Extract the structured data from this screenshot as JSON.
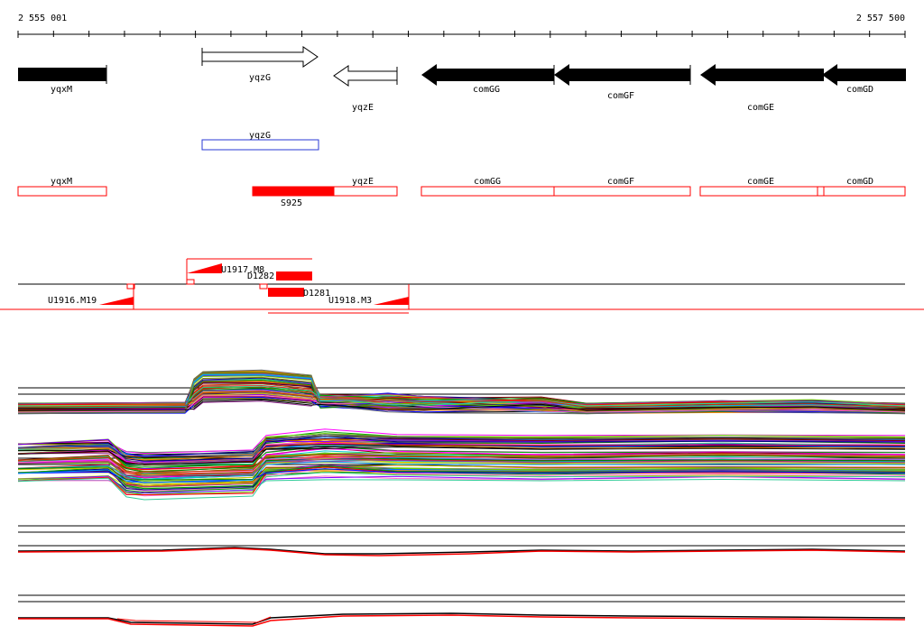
{
  "ruler": {
    "start_label": "2 555 001",
    "end_label": "2 557 500"
  },
  "genes": [
    {
      "name": "yqxM",
      "dir": "+",
      "fill": "black"
    },
    {
      "name": "yqzG",
      "dir": "+",
      "fill": "white"
    },
    {
      "name": "yqzE",
      "dir": "-",
      "fill": "white"
    },
    {
      "name": "comGG",
      "dir": "-",
      "fill": "black"
    },
    {
      "name": "comGF",
      "dir": "-",
      "fill": "black"
    },
    {
      "name": "comGE",
      "dir": "-",
      "fill": "black"
    },
    {
      "name": "comGD",
      "dir": "-",
      "fill": "black"
    }
  ],
  "blue_track": [
    {
      "name": "yqzG"
    }
  ],
  "red_track": [
    {
      "name": "yqxM"
    },
    {
      "name": "S925"
    },
    {
      "name": "yqzE"
    },
    {
      "name": "comGG"
    },
    {
      "name": "comGF"
    },
    {
      "name": "comGE"
    },
    {
      "name": "comGD"
    }
  ],
  "features": [
    {
      "name": "U1917.M8"
    },
    {
      "name": "D1282"
    },
    {
      "name": "U1916.M19"
    },
    {
      "name": "D1281"
    },
    {
      "name": "U1918.M3"
    }
  ],
  "colors": {
    "gene": "#000000",
    "outline_blue": "#2a3ad6",
    "red": "#ff0000"
  }
}
